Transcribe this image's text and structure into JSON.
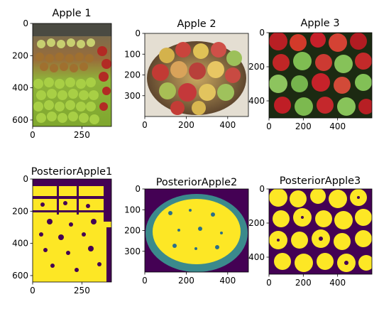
{
  "colors": {
    "mask_on": "#fde725",
    "mask_off": "#440154",
    "mask_mid": "#3b8a8c"
  },
  "chart_data": [
    {
      "type": "image",
      "title": "Apple 1",
      "image_size": [
        400,
        640
      ],
      "xticks": [
        0,
        250
      ],
      "yticks": [
        0,
        200,
        400,
        600
      ],
      "content": "photo of green apples, pears and red apples in market crates"
    },
    {
      "type": "image",
      "title": "Apple 2",
      "image_size": [
        500,
        400
      ],
      "xticks": [
        0,
        200,
        400
      ],
      "yticks": [
        0,
        100,
        200,
        300
      ],
      "content": "photo of a wicker basket of mixed red, green and yellow apples"
    },
    {
      "type": "image",
      "title": "Apple 3",
      "image_size": [
        600,
        500
      ],
      "xticks": [
        0,
        200,
        400
      ],
      "yticks": [
        0,
        200,
        400
      ],
      "content": "photo of red and green apples, close-up"
    },
    {
      "type": "heatmap",
      "title": "PosteriorApple1",
      "image_size": [
        400,
        640
      ],
      "xticks": [
        0,
        250
      ],
      "yticks": [
        0,
        200,
        400,
        600
      ],
      "content": "binary posterior mask, yellow apple regions on dark purple background"
    },
    {
      "type": "heatmap",
      "title": "PosteriorApple2",
      "image_size": [
        500,
        400
      ],
      "xticks": [
        0,
        200,
        400
      ],
      "yticks": [
        0,
        100,
        200,
        300
      ],
      "content": "binary posterior mask of the basket, yellow apples inside teal ring"
    },
    {
      "type": "heatmap",
      "title": "PosteriorApple3",
      "image_size": [
        600,
        500
      ],
      "xticks": [
        0,
        200,
        400
      ],
      "yticks": [
        0,
        200,
        400
      ],
      "content": "binary posterior mask, yellow round apples on dark purple background"
    }
  ]
}
